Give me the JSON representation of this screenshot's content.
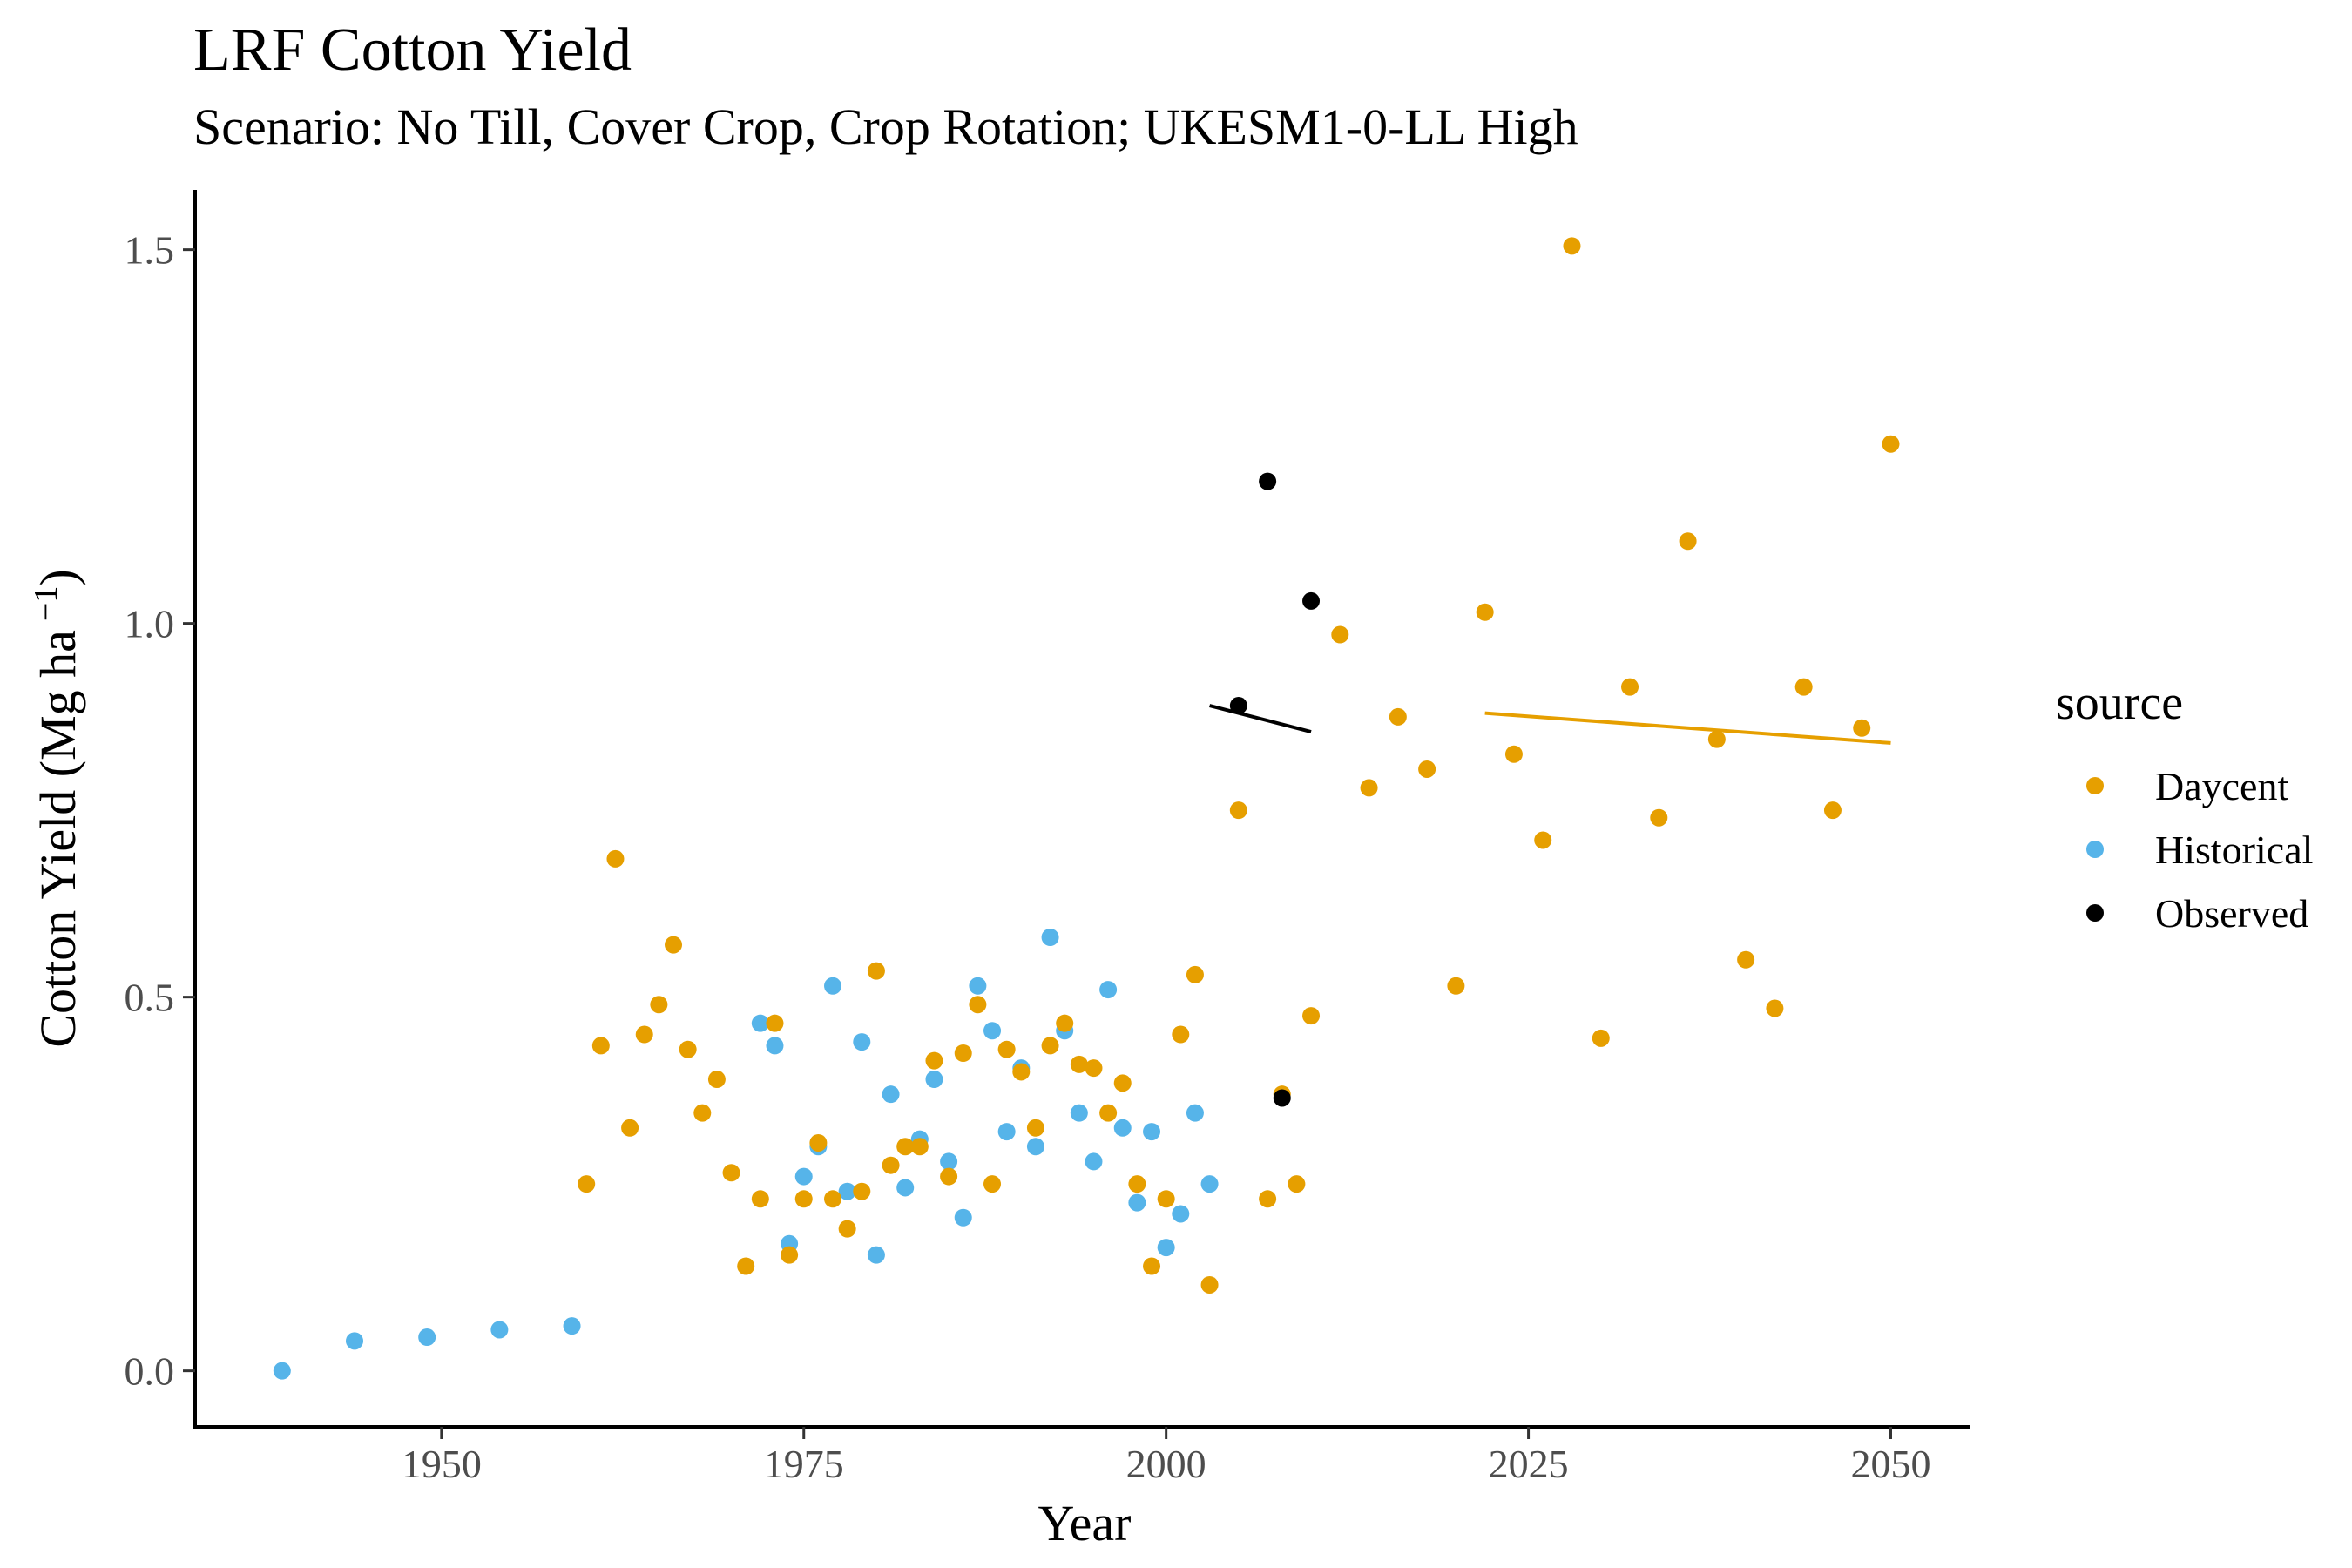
{
  "chart_data": {
    "type": "scatter",
    "title": "LRF Cotton Yield",
    "subtitle": "Scenario: No Till, Cover Crop, Crop Rotation; UKESM1-0-LL High",
    "xlabel": "Year",
    "ylabel": "Cotton Yield (Mg ha",
    "ylabel_superscript": "−1",
    "ylabel_close": ")",
    "xlim": [
      1933,
      2055.5
    ],
    "ylim": [
      -0.075,
      1.58
    ],
    "x_ticks": [
      1950,
      1975,
      2000,
      2025,
      2050
    ],
    "x_tick_labels": [
      "1950",
      "1975",
      "2000",
      "2025",
      "2050"
    ],
    "y_ticks": [
      0.0,
      0.5,
      1.0,
      1.5
    ],
    "y_tick_labels": [
      "0.0",
      "0.5",
      "1.0",
      "1.5"
    ],
    "grid": false,
    "legend": {
      "title": "source",
      "position": "right",
      "entries": [
        "Daycent",
        "Historical",
        "Observed"
      ]
    },
    "colors": {
      "Daycent": "#E69F00",
      "Historical": "#56B4E9",
      "Observed": "#000000"
    },
    "series": [
      {
        "name": "Historical",
        "color": "#56B4E9",
        "x": [
          1939,
          1944,
          1949,
          1954,
          1959,
          1972,
          1973,
          1974,
          1975,
          1976,
          1977,
          1978,
          1979,
          1980,
          1981,
          1982,
          1983,
          1984,
          1985,
          1986,
          1987,
          1988,
          1989,
          1990,
          1991,
          1992,
          1993,
          1994,
          1995,
          1996,
          1997,
          1998,
          1999,
          2000,
          2001,
          2002,
          2003
        ],
        "y": [
          0.0,
          0.04,
          0.045,
          0.055,
          0.06,
          0.465,
          0.435,
          0.17,
          0.26,
          0.3,
          0.515,
          0.24,
          0.44,
          0.155,
          0.37,
          0.245,
          0.31,
          0.39,
          0.28,
          0.205,
          0.515,
          0.455,
          0.32,
          0.405,
          0.3,
          0.58,
          0.455,
          0.345,
          0.28,
          0.51,
          0.325,
          0.225,
          0.32,
          0.165,
          0.21,
          0.345,
          0.25
        ]
      },
      {
        "name": "Daycent",
        "color": "#E69F00",
        "x": [
          1960,
          1961,
          1962,
          1963,
          1964,
          1965,
          1966,
          1967,
          1968,
          1969,
          1970,
          1971,
          1972,
          1973,
          1974,
          1975,
          1976,
          1977,
          1978,
          1979,
          1980,
          1981,
          1982,
          1983,
          1984,
          1985,
          1986,
          1987,
          1988,
          1989,
          1990,
          1991,
          1992,
          1993,
          1994,
          1995,
          1996,
          1997,
          1998,
          1999,
          2000,
          2001,
          2002,
          2003,
          2005,
          2007,
          2008,
          2009,
          2010,
          2012,
          2014,
          2016,
          2018,
          2020,
          2022,
          2024,
          2026,
          2028,
          2030,
          2032,
          2034,
          2036,
          2038,
          2040,
          2042,
          2044,
          2046,
          2048,
          2050
        ],
        "y": [
          0.25,
          0.435,
          0.685,
          0.325,
          0.45,
          0.49,
          0.57,
          0.43,
          0.345,
          0.39,
          0.265,
          0.14,
          0.23,
          0.465,
          0.155,
          0.23,
          0.305,
          0.23,
          0.19,
          0.24,
          0.535,
          0.275,
          0.3,
          0.3,
          0.415,
          0.26,
          0.425,
          0.49,
          0.25,
          0.43,
          0.4,
          0.325,
          0.435,
          0.465,
          0.41,
          0.405,
          0.345,
          0.385,
          0.25,
          0.14,
          0.23,
          0.45,
          0.53,
          0.115,
          0.75,
          0.23,
          0.37,
          0.25,
          0.475,
          0.985,
          0.78,
          0.875,
          0.805,
          0.515,
          1.015,
          0.825,
          0.71,
          1.505,
          0.445,
          0.915,
          0.74,
          1.11,
          0.845,
          0.55,
          0.485,
          0.915,
          0.75,
          0.86,
          1.24
        ]
      },
      {
        "name": "Observed",
        "color": "#000000",
        "x": [
          2005,
          2007,
          2008,
          2010
        ],
        "y": [
          0.89,
          1.19,
          0.365,
          1.03
        ]
      }
    ],
    "trend_lines": [
      {
        "name": "Observed",
        "color": "#000000",
        "x": [
          2003,
          2010
        ],
        "y": [
          0.89,
          0.855
        ]
      },
      {
        "name": "Daycent",
        "color": "#E69F00",
        "x": [
          2022,
          2050
        ],
        "y": [
          0.88,
          0.84
        ]
      }
    ]
  }
}
